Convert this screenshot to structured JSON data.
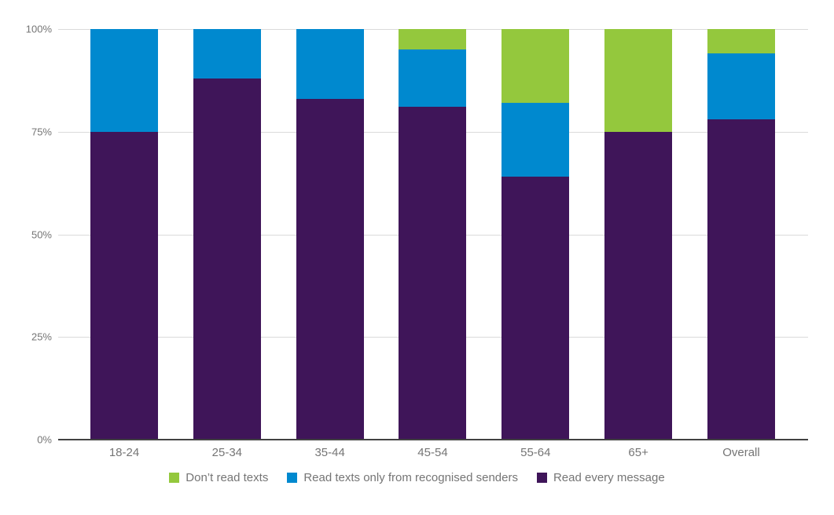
{
  "chart_data": {
    "type": "bar",
    "subtype": "stacked-100-percent",
    "title": "",
    "xlabel": "",
    "ylabel": "",
    "grid": true,
    "legend_position": "bottom",
    "categories": [
      "18-24",
      "25-34",
      "35-44",
      "45-54",
      "55-64",
      "65+",
      "Overall"
    ],
    "series": [
      {
        "name": "Read every message",
        "color": "#3f1559",
        "values": [
          75,
          88,
          83,
          81,
          64,
          75,
          78
        ]
      },
      {
        "name": "Read texts only from recognised senders",
        "color": "#0089cf",
        "values": [
          25,
          12,
          17,
          14,
          18,
          0,
          16
        ]
      },
      {
        "name": "Don’t read texts",
        "color": "#94c83d",
        "values": [
          0,
          0,
          0,
          5,
          18,
          25,
          6
        ]
      }
    ],
    "y_axis": {
      "min": 0,
      "max": 100,
      "ticks": [
        {
          "label": "0%",
          "value": 0
        },
        {
          "label": "25%",
          "value": 25
        },
        {
          "label": "50%",
          "value": 50
        },
        {
          "label": "75%",
          "value": 75
        },
        {
          "label": "100%",
          "value": 100
        }
      ]
    },
    "legend": [
      {
        "label": "Don’t read texts",
        "color": "#94c83d"
      },
      {
        "label": "Read texts only from recognised senders",
        "color": "#0089cf"
      },
      {
        "label": "Read every message",
        "color": "#3f1559"
      }
    ],
    "colors": {
      "gridline": "#dadada",
      "axis_line": "#424242",
      "tick_text": "#757575",
      "background": "#ffffff"
    }
  }
}
